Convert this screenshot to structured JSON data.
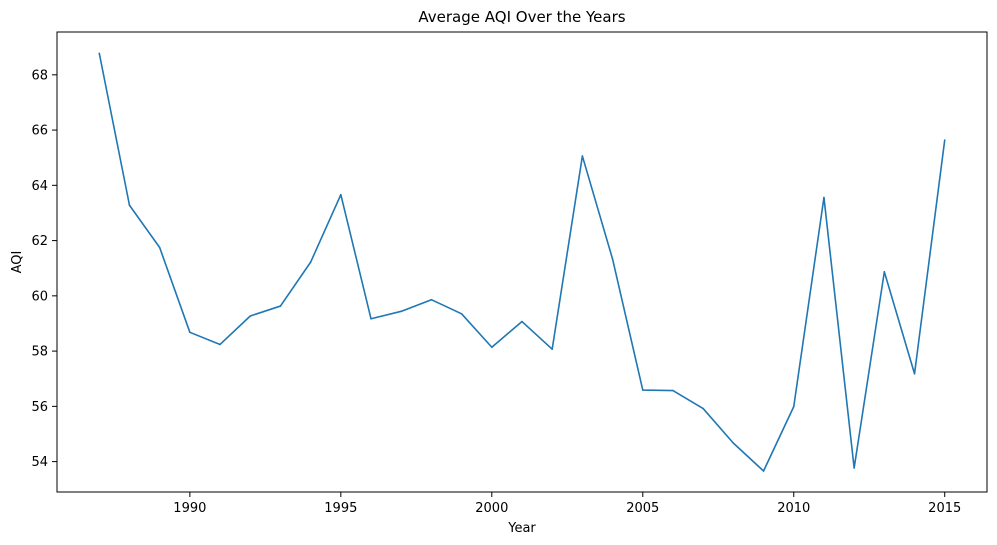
{
  "chart_data": {
    "type": "line",
    "title": "Average AQI Over the Years",
    "xlabel": "Year",
    "ylabel": "AQI",
    "xlim": [
      1985.6,
      2016.4
    ],
    "ylim": [
      52.9,
      69.55
    ],
    "xticks": [
      1990,
      1995,
      2000,
      2005,
      2010,
      2015
    ],
    "yticks": [
      54,
      56,
      58,
      60,
      62,
      64,
      66,
      68
    ],
    "grid": false,
    "series": [
      {
        "color": "#1f77b4",
        "x": [
          1987,
          1988,
          1989,
          1990,
          1991,
          1992,
          1993,
          1994,
          1995,
          1996,
          1997,
          1998,
          1999,
          2000,
          2001,
          2002,
          2003,
          2004,
          2005,
          2006,
          2007,
          2008,
          2009,
          2010,
          2011,
          2012,
          2013,
          2014,
          2015
        ],
        "values": [
          68.78,
          63.28,
          61.75,
          58.68,
          58.24,
          59.27,
          59.63,
          61.22,
          63.66,
          59.17,
          59.44,
          59.86,
          59.35,
          58.14,
          59.07,
          58.07,
          65.06,
          61.33,
          56.59,
          56.57,
          55.92,
          54.67,
          53.66,
          55.99,
          63.56,
          53.77,
          60.87,
          57.18,
          65.64
        ]
      }
    ]
  }
}
